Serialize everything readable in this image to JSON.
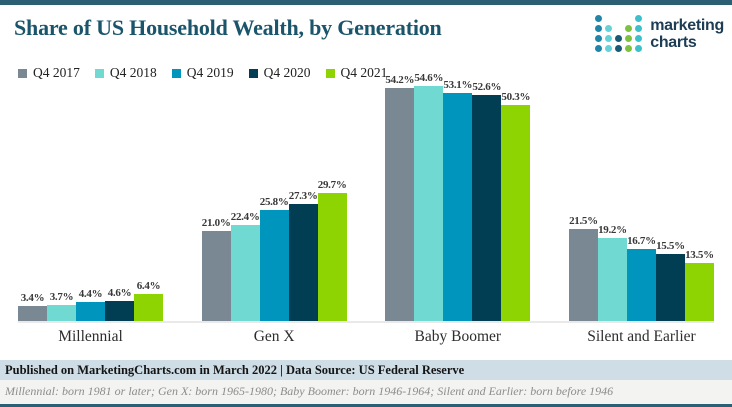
{
  "header": {
    "title": "Share of US Household Wealth, by Generation",
    "logo": {
      "line1": "marketing",
      "line2": "charts",
      "dot_columns": [
        {
          "height": 4,
          "color": "#2186a5"
        },
        {
          "height": 3,
          "color": "#66d1d6"
        },
        {
          "height": 2,
          "color": "#1a5a74"
        },
        {
          "height": 3,
          "color": "#7cc142"
        },
        {
          "height": 4,
          "color": "#3fbfca"
        }
      ]
    }
  },
  "chart_data": {
    "type": "bar",
    "title": "Share of US Household Wealth, by Generation",
    "categories": [
      "Millennial",
      "Gen X",
      "Baby Boomer",
      "Silent and Earlier"
    ],
    "series": [
      {
        "name": "Q4 2017",
        "color": "#7a8894",
        "values": [
          3.4,
          21.0,
          54.2,
          21.5
        ]
      },
      {
        "name": "Q4 2018",
        "color": "#6fd9d2",
        "values": [
          3.7,
          22.4,
          54.6,
          19.2
        ]
      },
      {
        "name": "Q4 2019",
        "color": "#0095bd",
        "values": [
          4.4,
          25.8,
          53.1,
          16.7
        ]
      },
      {
        "name": "Q4 2020",
        "color": "#013e53",
        "values": [
          4.6,
          27.3,
          52.6,
          15.5
        ]
      },
      {
        "name": "Q4 2021",
        "color": "#8ed402",
        "values": [
          6.4,
          29.7,
          50.3,
          13.5
        ]
      }
    ],
    "value_suffix": "%",
    "ylim": [
      0,
      60
    ],
    "grid": false,
    "legend_position": "top-left",
    "baseline_color": "#e9e9e9"
  },
  "footer": {
    "published": "Published on MarketingCharts.com in March 2022 | Data Source: US Federal Reserve",
    "footnote": "Millennial: born 1981 or later; Gen X: born 1965-1980; Baby Boomer: born 1946-1964; Silent and Earlier: born before 1946"
  },
  "colors": {
    "border": "#2b5f73",
    "title": "#1a556b",
    "published_bg": "#cedde6",
    "footnote_bg": "#f3f3f1",
    "logo_text": "#1d3d55"
  }
}
